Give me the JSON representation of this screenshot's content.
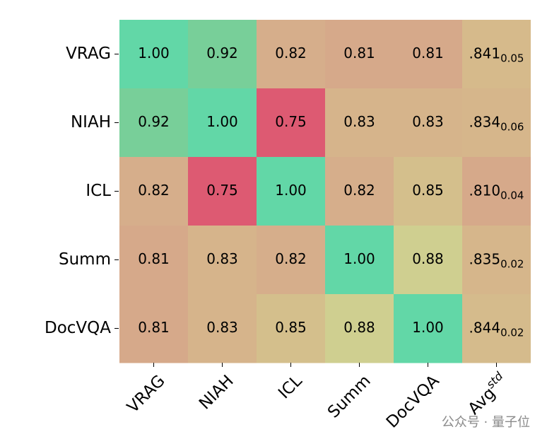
{
  "chart_data": {
    "type": "heatmap",
    "rows": [
      "VRAG",
      "NIAH",
      "ICL",
      "Summ",
      "DocVQA"
    ],
    "categories": [
      "VRAG",
      "NIAH",
      "ICL",
      "Summ",
      "DocVQA",
      "Avg"
    ],
    "last_category_subscript": "std",
    "values": [
      [
        1.0,
        0.92,
        0.82,
        0.81,
        0.81
      ],
      [
        0.92,
        1.0,
        0.75,
        0.83,
        0.83
      ],
      [
        0.82,
        0.75,
        1.0,
        0.82,
        0.85
      ],
      [
        0.81,
        0.83,
        0.82,
        1.0,
        0.88
      ],
      [
        0.81,
        0.83,
        0.85,
        0.88,
        1.0
      ]
    ],
    "value_labels": [
      [
        "1.00",
        "0.92",
        "0.82",
        "0.81",
        "0.81"
      ],
      [
        "0.92",
        "1.00",
        "0.75",
        "0.83",
        "0.83"
      ],
      [
        "0.82",
        "0.75",
        "1.00",
        "0.82",
        "0.85"
      ],
      [
        "0.81",
        "0.83",
        "0.82",
        "1.00",
        "0.88"
      ],
      [
        "0.81",
        "0.83",
        "0.85",
        "0.88",
        "1.00"
      ]
    ],
    "avg": {
      "values": [
        0.841,
        0.834,
        0.81,
        0.835,
        0.844
      ],
      "value_labels": [
        ".841",
        ".834",
        ".810",
        ".835",
        ".844"
      ],
      "std": [
        0.05,
        0.06,
        0.04,
        0.02,
        0.02
      ]
    },
    "colormap": [
      {
        "value": 0.75,
        "color": "#dd5a72"
      },
      {
        "value": 0.8,
        "color": "#d6a48a"
      },
      {
        "value": 0.84,
        "color": "#d6b98b"
      },
      {
        "value": 0.88,
        "color": "#cfcf90"
      },
      {
        "value": 0.92,
        "color": "#78cf99"
      },
      {
        "value": 1.0,
        "color": "#62d7a7"
      }
    ],
    "watermark": "公众号 · 量子位"
  }
}
